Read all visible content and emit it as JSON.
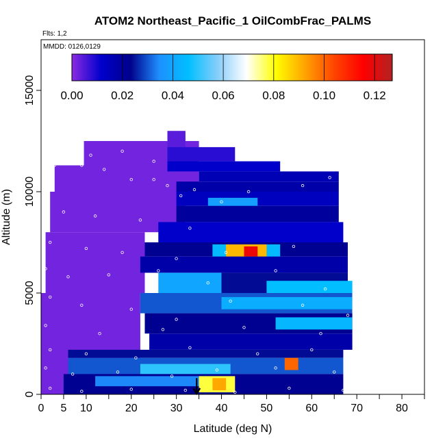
{
  "chart_data": {
    "type": "heatmap",
    "title": "ATOM2 Northeast_Pacific_1 OilCombFrac_PALMS",
    "flights_note": "Flts: 1,2",
    "date_note": "MMDD: 0126,0129",
    "xlabel": "Latitude (deg N)",
    "ylabel": "Altitude (m)",
    "xlim": [
      0,
      85
    ],
    "ylim": [
      0,
      17500
    ],
    "x_ticks": [
      0,
      5,
      10,
      20,
      30,
      40,
      50,
      60,
      70,
      80
    ],
    "x_tick_labels": [
      "0",
      "5",
      "10",
      "20",
      "30",
      "40",
      "50",
      "60",
      "70",
      "80"
    ],
    "x_minor_ticks": [
      15,
      25,
      35,
      45,
      55,
      65,
      75,
      85
    ],
    "y_ticks": [
      0,
      5000,
      10000,
      15000
    ],
    "y_tick_labels": [
      "0",
      "5000",
      "10000",
      "15000"
    ],
    "colorbar": {
      "min": 0.0,
      "max": 0.127,
      "ticks": [
        0.0,
        0.02,
        0.04,
        0.06,
        0.08,
        0.1,
        0.12
      ],
      "tick_labels": [
        "0.00",
        "0.02",
        "0.04",
        "0.06",
        "0.08",
        "0.10",
        "0.12"
      ],
      "colors": [
        "#8a2be2",
        "#0000cd",
        "#00008b",
        "#1e90ff",
        "#00bfff",
        "#87cefa",
        "#ffffff",
        "#ffff00",
        "#ffa500",
        "#ff4500",
        "#ff0000",
        "#b22222"
      ]
    },
    "background_value": 0.002,
    "arrow_marker": {
      "latitude": 34.5,
      "altitude_from": 800,
      "altitude_to": 0
    },
    "regions": [
      {
        "x": [
          9.5,
          35
        ],
        "y": [
          11000,
          12500
        ],
        "v": 0.002
      },
      {
        "x": [
          3,
          35
        ],
        "y": [
          10000,
          11300
        ],
        "v": 0.002
      },
      {
        "x": [
          2,
          32
        ],
        "y": [
          8000,
          10000
        ],
        "v": 0.002
      },
      {
        "x": [
          1,
          23
        ],
        "y": [
          5000,
          8000
        ],
        "v": 0.002
      },
      {
        "x": [
          0,
          22
        ],
        "y": [
          0,
          5000
        ],
        "v": 0.002
      },
      {
        "x": [
          28,
          32
        ],
        "y": [
          12200,
          13000
        ],
        "v": 0.004
      },
      {
        "x": [
          28,
          43
        ],
        "y": [
          11500,
          12200
        ],
        "v": 0.008
      },
      {
        "x": [
          28,
          53
        ],
        "y": [
          11000,
          11500
        ],
        "v": 0.012
      },
      {
        "x": [
          35,
          66
        ],
        "y": [
          10500,
          11000
        ],
        "v": 0.016
      },
      {
        "x": [
          30,
          66
        ],
        "y": [
          10000,
          10500
        ],
        "v": 0.018
      },
      {
        "x": [
          30,
          66
        ],
        "y": [
          9300,
          10000
        ],
        "v": 0.014
      },
      {
        "x": [
          37,
          48
        ],
        "y": [
          9200,
          9700
        ],
        "v": 0.038
      },
      {
        "x": [
          30,
          66
        ],
        "y": [
          8500,
          9300
        ],
        "v": 0.02
      },
      {
        "x": [
          26,
          67
        ],
        "y": [
          7500,
          8500
        ],
        "v": 0.012
      },
      {
        "x": [
          23,
          68
        ],
        "y": [
          6800,
          7500
        ],
        "v": 0.022
      },
      {
        "x": [
          38,
          53
        ],
        "y": [
          6700,
          7400
        ],
        "v": 0.045
      },
      {
        "x": [
          41,
          50
        ],
        "y": [
          6700,
          7400
        ],
        "v": 0.09
      },
      {
        "x": [
          45,
          48
        ],
        "y": [
          6800,
          7300
        ],
        "v": 0.118
      },
      {
        "x": [
          22,
          68
        ],
        "y": [
          6000,
          6800
        ],
        "v": 0.018
      },
      {
        "x": [
          26,
          40
        ],
        "y": [
          5000,
          6000
        ],
        "v": 0.04
      },
      {
        "x": [
          40,
          68
        ],
        "y": [
          5000,
          6000
        ],
        "v": 0.024
      },
      {
        "x": [
          50,
          69
        ],
        "y": [
          4900,
          5600
        ],
        "v": 0.046
      },
      {
        "x": [
          22,
          69
        ],
        "y": [
          4000,
          5000
        ],
        "v": 0.03
      },
      {
        "x": [
          40,
          69
        ],
        "y": [
          4200,
          4800
        ],
        "v": 0.042
      },
      {
        "x": [
          23,
          69
        ],
        "y": [
          3000,
          4000
        ],
        "v": 0.022
      },
      {
        "x": [
          52,
          69
        ],
        "y": [
          3200,
          3800
        ],
        "v": 0.044
      },
      {
        "x": [
          24,
          69
        ],
        "y": [
          2200,
          3000
        ],
        "v": 0.018
      },
      {
        "x": [
          6,
          67
        ],
        "y": [
          1800,
          2200
        ],
        "v": 0.024
      },
      {
        "x": [
          6,
          67
        ],
        "y": [
          1000,
          1800
        ],
        "v": 0.03
      },
      {
        "x": [
          22,
          42
        ],
        "y": [
          1000,
          1500
        ],
        "v": 0.05
      },
      {
        "x": [
          5,
          67
        ],
        "y": [
          0,
          1000
        ],
        "v": 0.022
      },
      {
        "x": [
          12,
          35
        ],
        "y": [
          400,
          900
        ],
        "v": 0.034
      },
      {
        "x": [
          35,
          43
        ],
        "y": [
          100,
          900
        ],
        "v": 0.078
      },
      {
        "x": [
          38,
          41
        ],
        "y": [
          200,
          800
        ],
        "v": 0.092
      },
      {
        "x": [
          54,
          57
        ],
        "y": [
          1200,
          1800
        ],
        "v": 0.1
      }
    ],
    "observations": [
      [
        11,
        11800
      ],
      [
        18,
        12000
      ],
      [
        25,
        11500
      ],
      [
        3,
        11300
      ],
      [
        9,
        11300
      ],
      [
        14,
        11100
      ],
      [
        20,
        10600
      ],
      [
        25,
        10600
      ],
      [
        28,
        10300
      ],
      [
        31,
        9800
      ],
      [
        34,
        10100
      ],
      [
        40,
        9500
      ],
      [
        46,
        10000
      ],
      [
        58,
        10300
      ],
      [
        64,
        10700
      ],
      [
        5,
        9000
      ],
      [
        12,
        8800
      ],
      [
        22,
        8600
      ],
      [
        33,
        8200
      ],
      [
        2,
        7500
      ],
      [
        10,
        7200
      ],
      [
        18,
        7000
      ],
      [
        30,
        6700
      ],
      [
        41,
        7000
      ],
      [
        56,
        7300
      ],
      [
        1,
        6200
      ],
      [
        6,
        5800
      ],
      [
        15,
        5900
      ],
      [
        26,
        6100
      ],
      [
        37,
        5500
      ],
      [
        52,
        6100
      ],
      [
        63,
        5200
      ],
      [
        2,
        4800
      ],
      [
        9,
        4400
      ],
      [
        20,
        4200
      ],
      [
        30,
        3700
      ],
      [
        42,
        4600
      ],
      [
        58,
        4400
      ],
      [
        68,
        3900
      ],
      [
        1,
        3400
      ],
      [
        13,
        3000
      ],
      [
        27,
        3200
      ],
      [
        45,
        3300
      ],
      [
        62,
        3000
      ],
      [
        2,
        2200
      ],
      [
        10,
        2000
      ],
      [
        21,
        1800
      ],
      [
        33,
        2300
      ],
      [
        48,
        2000
      ],
      [
        60,
        2200
      ],
      [
        68,
        1700
      ],
      [
        1,
        1300
      ],
      [
        7,
        1000
      ],
      [
        17,
        1100
      ],
      [
        29,
        900
      ],
      [
        39,
        1200
      ],
      [
        52,
        1300
      ],
      [
        65,
        1100
      ],
      [
        69,
        800
      ],
      [
        2,
        300
      ],
      [
        9,
        150
      ],
      [
        20,
        250
      ],
      [
        32,
        200
      ],
      [
        43,
        100
      ],
      [
        55,
        300
      ],
      [
        67,
        200
      ]
    ]
  }
}
